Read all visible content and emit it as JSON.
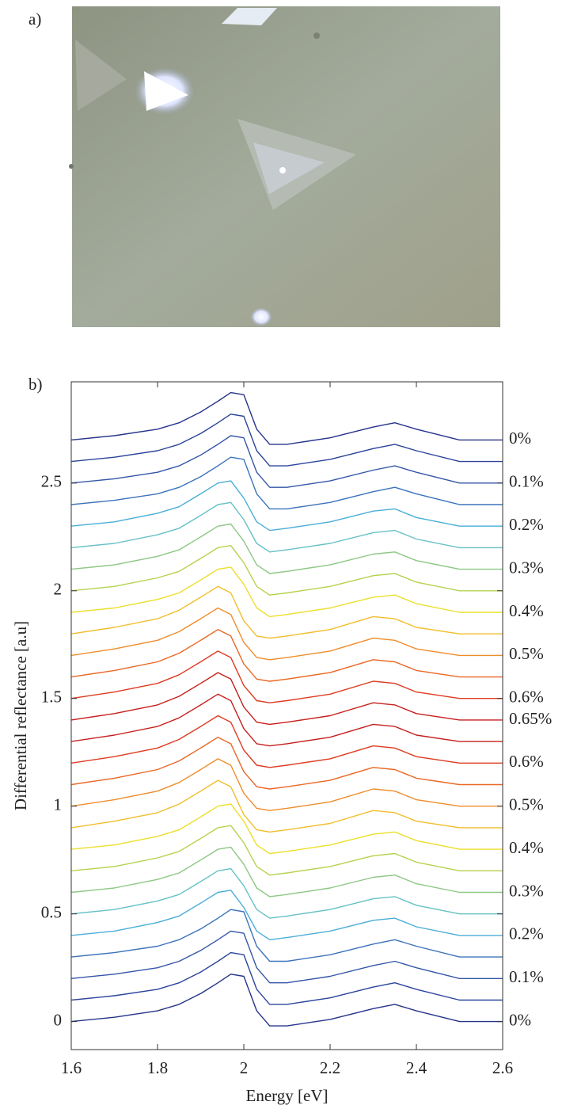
{
  "panel_a": {
    "label": "a)"
  },
  "chart_data": {
    "type": "line",
    "panel_label": "b)",
    "xlabel": "Energy [eV]",
    "ylabel": "Differential reflectance [a.u]",
    "x": [
      1.6,
      1.7,
      1.8,
      1.85,
      1.9,
      1.94,
      1.97,
      2.0,
      2.03,
      2.06,
      2.1,
      2.2,
      2.3,
      2.35,
      2.4,
      2.5,
      2.6
    ],
    "xlim": [
      1.6,
      2.6
    ],
    "xticks": [
      1.6,
      1.8,
      2,
      2.2,
      2.4,
      2.6
    ],
    "ylim": [
      -0.13,
      2.97
    ],
    "yticks": [
      0,
      0.5,
      1,
      1.5,
      2,
      2.5
    ],
    "series": [
      {
        "name": "0%",
        "color": "#26338a",
        "values": [
          0,
          0.02,
          0.05,
          0.08,
          0.13,
          0.18,
          0.22,
          0.21,
          0.05,
          -0.02,
          -0.02,
          0.01,
          0.06,
          0.08,
          0.05,
          0,
          0
        ]
      },
      {
        "color": "#2b449a",
        "values": [
          0.1,
          0.12,
          0.15,
          0.18,
          0.23,
          0.28,
          0.32,
          0.31,
          0.15,
          0.08,
          0.08,
          0.11,
          0.16,
          0.18,
          0.15,
          0.1,
          0.1
        ]
      },
      {
        "name": "0.1%",
        "color": "#3556a8",
        "values": [
          0.2,
          0.22,
          0.25,
          0.28,
          0.33,
          0.38,
          0.42,
          0.41,
          0.25,
          0.18,
          0.18,
          0.21,
          0.26,
          0.28,
          0.25,
          0.2,
          0.2
        ]
      },
      {
        "color": "#3c73bb",
        "values": [
          0.3,
          0.32,
          0.35,
          0.38,
          0.43,
          0.48,
          0.52,
          0.51,
          0.35,
          0.28,
          0.28,
          0.31,
          0.36,
          0.38,
          0.35,
          0.3,
          0.3
        ]
      },
      {
        "name": "0.2%",
        "color": "#4aaed8",
        "values": [
          0.4,
          0.42,
          0.46,
          0.49,
          0.55,
          0.6,
          0.61,
          0.53,
          0.42,
          0.38,
          0.39,
          0.42,
          0.47,
          0.48,
          0.44,
          0.4,
          0.4
        ]
      },
      {
        "color": "#65c1c4",
        "values": [
          0.5,
          0.52,
          0.56,
          0.59,
          0.65,
          0.7,
          0.71,
          0.63,
          0.52,
          0.48,
          0.49,
          0.52,
          0.57,
          0.58,
          0.54,
          0.5,
          0.5
        ]
      },
      {
        "name": "0.3%",
        "color": "#8cc783",
        "values": [
          0.6,
          0.62,
          0.66,
          0.69,
          0.75,
          0.8,
          0.81,
          0.73,
          0.62,
          0.58,
          0.59,
          0.62,
          0.67,
          0.68,
          0.64,
          0.6,
          0.6
        ]
      },
      {
        "color": "#b5d24e",
        "values": [
          0.7,
          0.72,
          0.76,
          0.79,
          0.85,
          0.9,
          0.91,
          0.83,
          0.72,
          0.68,
          0.69,
          0.72,
          0.77,
          0.78,
          0.74,
          0.7,
          0.7
        ]
      },
      {
        "name": "0.4%",
        "color": "#ecdf2a",
        "values": [
          0.8,
          0.82,
          0.86,
          0.89,
          0.95,
          1,
          1.01,
          0.93,
          0.82,
          0.78,
          0.79,
          0.82,
          0.87,
          0.88,
          0.84,
          0.8,
          0.8
        ]
      },
      {
        "color": "#f2bd2c",
        "values": [
          0.9,
          0.93,
          0.97,
          1.01,
          1.07,
          1.12,
          1.09,
          0.96,
          0.89,
          0.88,
          0.89,
          0.92,
          0.98,
          0.97,
          0.93,
          0.9,
          0.9
        ]
      },
      {
        "name": "0.5%",
        "color": "#ef8d2b",
        "values": [
          1,
          1.03,
          1.07,
          1.11,
          1.17,
          1.22,
          1.19,
          1.06,
          0.99,
          0.98,
          0.99,
          1.02,
          1.08,
          1.07,
          1.03,
          1,
          1
        ]
      },
      {
        "color": "#ea6724",
        "values": [
          1.1,
          1.13,
          1.17,
          1.21,
          1.27,
          1.32,
          1.29,
          1.16,
          1.09,
          1.08,
          1.09,
          1.12,
          1.18,
          1.17,
          1.13,
          1.1,
          1.1
        ]
      },
      {
        "name": "0.6%",
        "color": "#de3b21",
        "values": [
          1.2,
          1.23,
          1.27,
          1.31,
          1.37,
          1.42,
          1.39,
          1.26,
          1.19,
          1.18,
          1.19,
          1.22,
          1.28,
          1.27,
          1.23,
          1.2,
          1.2
        ]
      },
      {
        "color": "#c6201d",
        "values": [
          1.3,
          1.33,
          1.37,
          1.41,
          1.47,
          1.52,
          1.49,
          1.36,
          1.29,
          1.28,
          1.29,
          1.32,
          1.38,
          1.37,
          1.33,
          1.3,
          1.3
        ]
      },
      {
        "name": "0.65%",
        "color": "#c6201d",
        "values": [
          1.4,
          1.43,
          1.47,
          1.51,
          1.57,
          1.62,
          1.59,
          1.46,
          1.39,
          1.38,
          1.39,
          1.42,
          1.48,
          1.47,
          1.43,
          1.4,
          1.4
        ]
      },
      {
        "name": "0.6%",
        "color": "#de3b21",
        "values": [
          1.5,
          1.53,
          1.57,
          1.61,
          1.67,
          1.72,
          1.69,
          1.56,
          1.49,
          1.48,
          1.49,
          1.52,
          1.58,
          1.57,
          1.53,
          1.5,
          1.5
        ]
      },
      {
        "color": "#ea6724",
        "values": [
          1.6,
          1.63,
          1.67,
          1.71,
          1.77,
          1.82,
          1.79,
          1.66,
          1.59,
          1.58,
          1.59,
          1.62,
          1.68,
          1.67,
          1.63,
          1.6,
          1.6
        ]
      },
      {
        "name": "0.5%",
        "color": "#ef8d2b",
        "values": [
          1.7,
          1.73,
          1.77,
          1.81,
          1.87,
          1.92,
          1.89,
          1.76,
          1.69,
          1.68,
          1.69,
          1.72,
          1.78,
          1.77,
          1.73,
          1.7,
          1.7
        ]
      },
      {
        "color": "#f2bd2c",
        "values": [
          1.8,
          1.83,
          1.87,
          1.91,
          1.97,
          2.02,
          1.99,
          1.86,
          1.79,
          1.78,
          1.79,
          1.82,
          1.88,
          1.87,
          1.83,
          1.8,
          1.8
        ]
      },
      {
        "name": "0.4%",
        "color": "#ecdf2a",
        "values": [
          1.9,
          1.92,
          1.96,
          1.99,
          2.05,
          2.1,
          2.11,
          2.03,
          1.92,
          1.88,
          1.89,
          1.92,
          1.97,
          1.98,
          1.94,
          1.9,
          1.9
        ]
      },
      {
        "color": "#b5d24e",
        "values": [
          2,
          2.02,
          2.06,
          2.09,
          2.15,
          2.2,
          2.21,
          2.13,
          2.02,
          1.98,
          1.99,
          2.02,
          2.07,
          2.08,
          2.04,
          2,
          2
        ]
      },
      {
        "name": "0.3%",
        "color": "#8cc783",
        "values": [
          2.1,
          2.12,
          2.16,
          2.19,
          2.25,
          2.3,
          2.31,
          2.23,
          2.12,
          2.08,
          2.09,
          2.12,
          2.17,
          2.18,
          2.14,
          2.1,
          2.1
        ]
      },
      {
        "color": "#65c1c4",
        "values": [
          2.2,
          2.22,
          2.26,
          2.29,
          2.35,
          2.4,
          2.41,
          2.33,
          2.22,
          2.18,
          2.19,
          2.22,
          2.27,
          2.28,
          2.24,
          2.2,
          2.2
        ]
      },
      {
        "name": "0.2%",
        "color": "#4aaed8",
        "values": [
          2.3,
          2.32,
          2.36,
          2.39,
          2.45,
          2.5,
          2.51,
          2.43,
          2.32,
          2.28,
          2.29,
          2.32,
          2.37,
          2.38,
          2.34,
          2.3,
          2.3
        ]
      },
      {
        "color": "#3c73bb",
        "values": [
          2.4,
          2.42,
          2.45,
          2.48,
          2.53,
          2.58,
          2.62,
          2.61,
          2.45,
          2.38,
          2.38,
          2.41,
          2.46,
          2.48,
          2.45,
          2.4,
          2.4
        ]
      },
      {
        "name": "0.1%",
        "color": "#3556a8",
        "values": [
          2.5,
          2.52,
          2.55,
          2.58,
          2.63,
          2.68,
          2.72,
          2.71,
          2.55,
          2.48,
          2.48,
          2.51,
          2.56,
          2.58,
          2.55,
          2.5,
          2.5
        ]
      },
      {
        "color": "#2b449a",
        "values": [
          2.6,
          2.62,
          2.65,
          2.68,
          2.73,
          2.78,
          2.82,
          2.81,
          2.65,
          2.58,
          2.58,
          2.61,
          2.66,
          2.68,
          2.65,
          2.6,
          2.6
        ]
      },
      {
        "name": "0%",
        "color": "#26338a",
        "values": [
          2.7,
          2.72,
          2.75,
          2.78,
          2.83,
          2.88,
          2.92,
          2.91,
          2.75,
          2.68,
          2.68,
          2.71,
          2.76,
          2.78,
          2.75,
          2.7,
          2.7
        ]
      }
    ]
  }
}
